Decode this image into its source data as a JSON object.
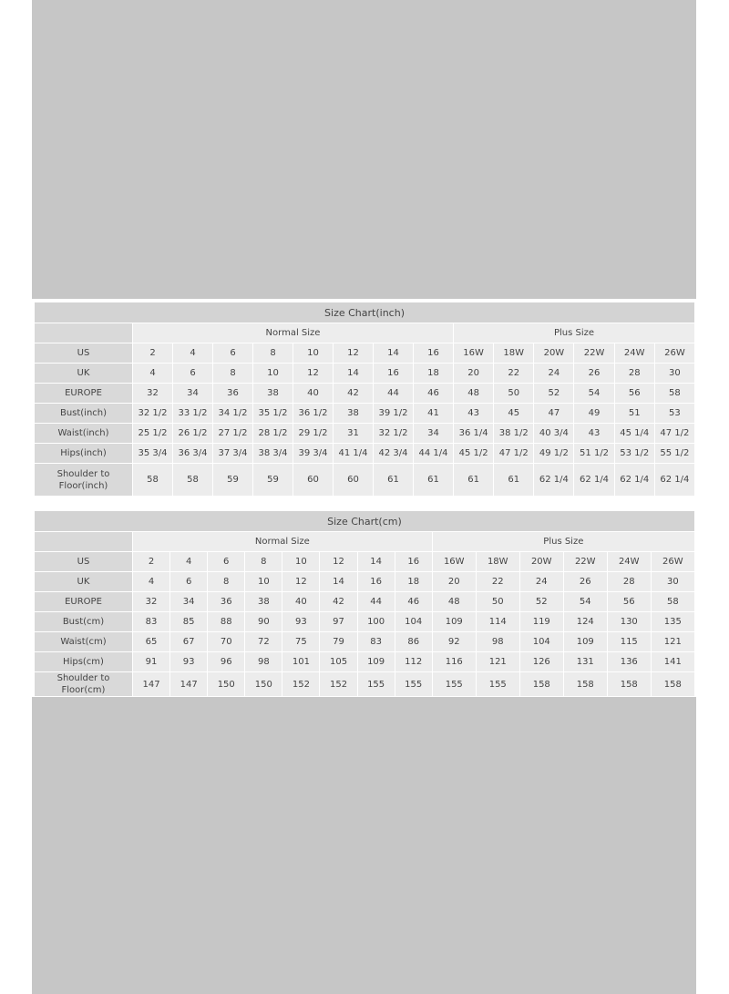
{
  "charts": [
    {
      "title": "Size Chart(inch)",
      "groups": [
        "Normal Size",
        "Plus Size"
      ],
      "group_spans": [
        8,
        6
      ],
      "rows": [
        {
          "label": "US",
          "values": [
            "2",
            "4",
            "6",
            "8",
            "10",
            "12",
            "14",
            "16",
            "16W",
            "18W",
            "20W",
            "22W",
            "24W",
            "26W"
          ]
        },
        {
          "label": "UK",
          "values": [
            "4",
            "6",
            "8",
            "10",
            "12",
            "14",
            "16",
            "18",
            "20",
            "22",
            "24",
            "26",
            "28",
            "30"
          ]
        },
        {
          "label": "EUROPE",
          "values": [
            "32",
            "34",
            "36",
            "38",
            "40",
            "42",
            "44",
            "46",
            "48",
            "50",
            "52",
            "54",
            "56",
            "58"
          ]
        },
        {
          "label": "Bust(inch)",
          "values": [
            "32 1/2",
            "33 1/2",
            "34 1/2",
            "35 1/2",
            "36 1/2",
            "38",
            "39 1/2",
            "41",
            "43",
            "45",
            "47",
            "49",
            "51",
            "53"
          ]
        },
        {
          "label": "Waist(inch)",
          "values": [
            "25 1/2",
            "26 1/2",
            "27 1/2",
            "28 1/2",
            "29 1/2",
            "31",
            "32 1/2",
            "34",
            "36 1/4",
            "38 1/2",
            "40 3/4",
            "43",
            "45 1/4",
            "47 1/2"
          ]
        },
        {
          "label": "Hips(inch)",
          "values": [
            "35 3/4",
            "36 3/4",
            "37 3/4",
            "38 3/4",
            "39 3/4",
            "41 1/4",
            "42 3/4",
            "44 1/4",
            "45 1/2",
            "47 1/2",
            "49 1/2",
            "51 1/2",
            "53 1/2",
            "55 1/2"
          ]
        },
        {
          "label": "Shoulder to Floor(inch)",
          "values": [
            "58",
            "58",
            "59",
            "59",
            "60",
            "60",
            "61",
            "61",
            "61",
            "61",
            "62 1/4",
            "62 1/4",
            "62 1/4",
            "62 1/4"
          ]
        }
      ]
    },
    {
      "title": "Size Chart(cm)",
      "groups": [
        "Normal Size",
        "Plus Size"
      ],
      "group_spans": [
        8,
        6
      ],
      "rows": [
        {
          "label": "US",
          "values": [
            "2",
            "4",
            "6",
            "8",
            "10",
            "12",
            "14",
            "16",
            "16W",
            "18W",
            "20W",
            "22W",
            "24W",
            "26W"
          ]
        },
        {
          "label": "UK",
          "values": [
            "4",
            "6",
            "8",
            "10",
            "12",
            "14",
            "16",
            "18",
            "20",
            "22",
            "24",
            "26",
            "28",
            "30"
          ]
        },
        {
          "label": "EUROPE",
          "values": [
            "32",
            "34",
            "36",
            "38",
            "40",
            "42",
            "44",
            "46",
            "48",
            "50",
            "52",
            "54",
            "56",
            "58"
          ]
        },
        {
          "label": "Bust(cm)",
          "values": [
            "83",
            "85",
            "88",
            "90",
            "93",
            "97",
            "100",
            "104",
            "109",
            "114",
            "119",
            "124",
            "130",
            "135"
          ]
        },
        {
          "label": "Waist(cm)",
          "values": [
            "65",
            "67",
            "70",
            "72",
            "75",
            "79",
            "83",
            "86",
            "92",
            "98",
            "104",
            "109",
            "115",
            "121"
          ]
        },
        {
          "label": "Hips(cm)",
          "values": [
            "91",
            "93",
            "96",
            "98",
            "101",
            "105",
            "109",
            "112",
            "116",
            "121",
            "126",
            "131",
            "136",
            "141"
          ]
        },
        {
          "label": "Shoulder to Floor(cm)",
          "values": [
            "147",
            "147",
            "150",
            "150",
            "152",
            "152",
            "155",
            "155",
            "155",
            "155",
            "158",
            "158",
            "158",
            "158"
          ]
        }
      ]
    }
  ]
}
